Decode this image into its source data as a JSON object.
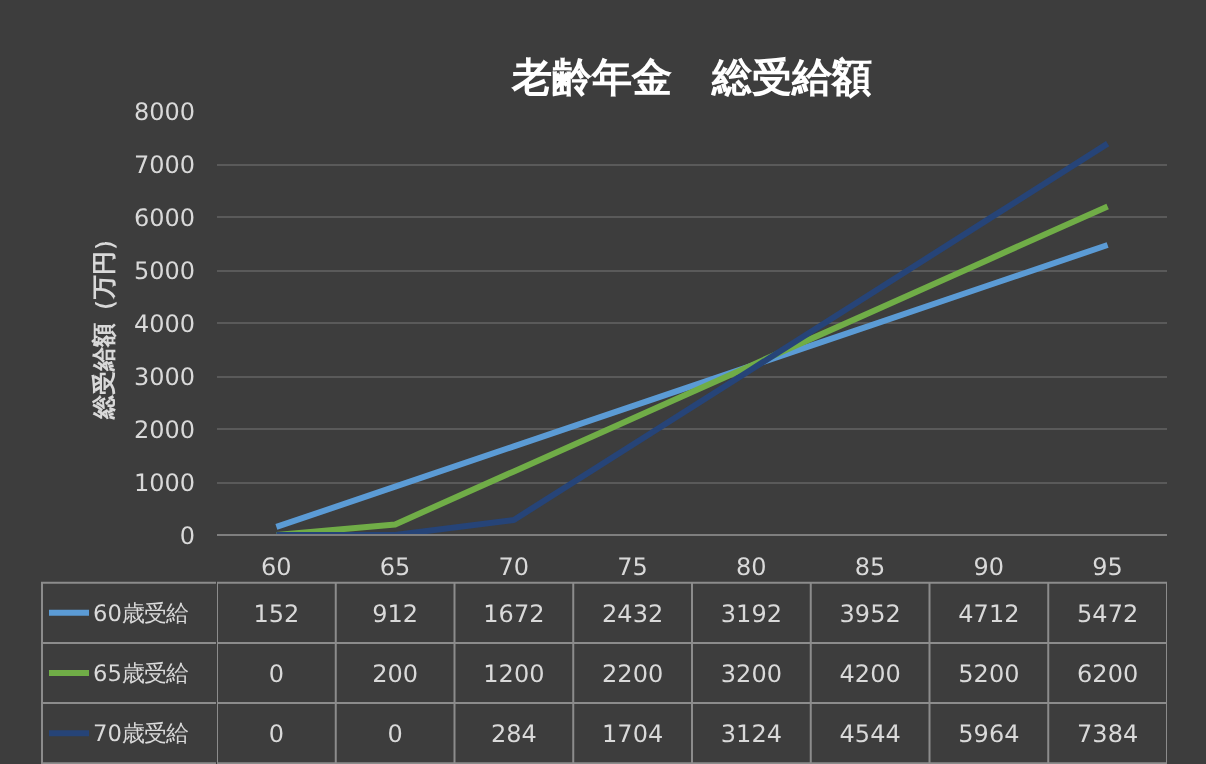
{
  "chart_data": {
    "type": "line",
    "title": "老齢年金　総受給額",
    "ylabel": "総受給額（万円）",
    "categories": [
      "60",
      "65",
      "70",
      "75",
      "80",
      "85",
      "90",
      "95"
    ],
    "series": [
      {
        "name": "60歳受給",
        "color": "#5b9bd5",
        "values": [
          152,
          912,
          1672,
          2432,
          3192,
          3952,
          4712,
          5472
        ]
      },
      {
        "name": "65歳受給",
        "color": "#70ad47",
        "values": [
          0,
          200,
          1200,
          2200,
          3200,
          4200,
          5200,
          6200
        ]
      },
      {
        "name": "70歳受給",
        "color": "#264478",
        "values": [
          0,
          0,
          284,
          1704,
          3124,
          4544,
          5964,
          7384
        ]
      }
    ],
    "ylim": [
      0,
      8000
    ],
    "yticks": [
      0,
      1000,
      2000,
      3000,
      4000,
      5000,
      6000,
      7000,
      8000
    ],
    "grid": "y",
    "legend": "bottom",
    "data_labels": true,
    "marker": "none",
    "line_style": "solid"
  }
}
